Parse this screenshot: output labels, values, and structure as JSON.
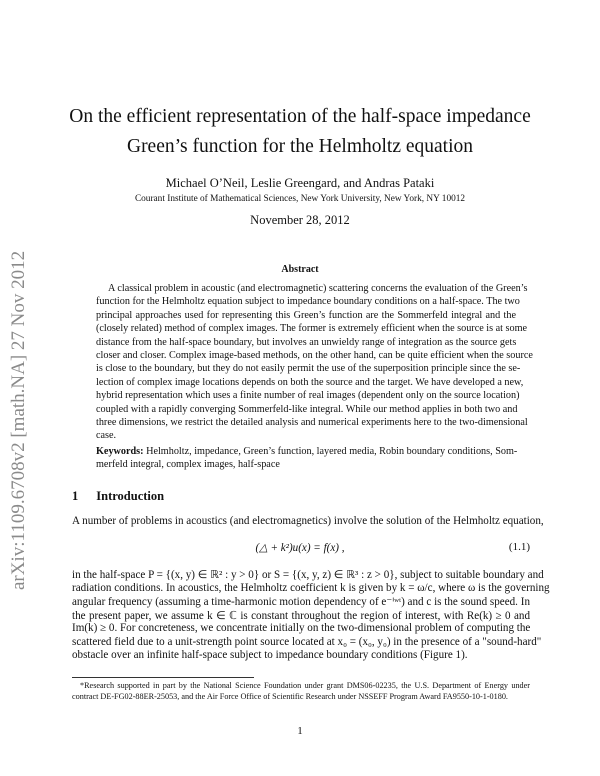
{
  "arxiv_stamp": "arXiv:1109.6708v2  [math.NA]  27 Nov 2012",
  "title_lines": [
    "On the efficient representation of the half-space impedance",
    "Green’s function for the Helmholtz equation"
  ],
  "authors": "Michael O’Neil, Leslie Greengard, and Andras Pataki",
  "affiliation": "Courant Institute of Mathematical Sciences, New York University, New York, NY 10012",
  "date": "November 28, 2012",
  "abstract_heading": "Abstract",
  "abstract_lines": [
    "A classical problem in acoustic (and electromagnetic) scattering concerns the evaluation of the Green’s",
    "function for the Helmholtz equation subject to impedance boundary conditions on a half-space. The two",
    "principal approaches used for representing this Green’s function are the Sommerfeld integral and the",
    "(closely related) method of complex images. The former is extremely efficient when the source is at some",
    "distance from the half-space boundary, but involves an unwieldy range of integration as the source gets",
    "closer and closer. Complex image-based methods, on the other hand, can be quite efficient when the source",
    "is close to the boundary, but they do not easily permit the use of the superposition principle since the se-",
    "lection of complex image locations depends on both the source and the target. We have developed a new,",
    "hybrid representation which uses a finite number of real images (dependent only on the source location)",
    "coupled with a rapidly converging Sommerfeld-like integral. While our method applies in both two and",
    "three dimensions, we restrict the detailed analysis and numerical experiments here to the two-dimensional",
    "case."
  ],
  "keywords_label": "Keywords:",
  "keywords_lines": [
    "Helmholtz, impedance, Green’s function, layered media, Robin boundary conditions, Som-",
    "merfeld integral, complex images, half-space"
  ],
  "section_number": "1",
  "section_title": "Introduction",
  "intro_line": "A number of problems in acoustics (and electromagnetics) involve the solution of the Helmholtz equation,",
  "equation": "(△ + k²)u(x) = f(x) ,",
  "equation_number": "(1.1)",
  "body_lines": [
    "in the half-space P = {(x, y) ∈ ℝ² : y > 0} or S = {(x, y, z) ∈ ℝ³ : z > 0}, subject to suitable boundary and",
    "radiation conditions. In acoustics, the Helmholtz coefficient k is given by k = ω/c, where ω is the governing",
    "angular frequency (assuming a time-harmonic motion dependency of e⁻ⁱʷᵗ) and c is the sound speed. In",
    "the present paper, we assume k ∈ ℂ is constant throughout the region of interest, with Re(k) ≥ 0 and",
    "Im(k) ≥ 0. For concreteness, we concentrate initially on the two-dimensional problem of computing the",
    "scattered field due to a unit-strength point source located at x₀ = (x₀, y₀) in the presence of a \"sound-hard\"",
    "obstacle over an infinite half-space subject to impedance boundary conditions (Figure 1)."
  ],
  "footnote_lines": [
    "*Research supported in part by the National Science Foundation under grant DMS06-02235, the U.S. Department of Energy under",
    "contract DE-FG02-88ER-25053, and the Air Force Office of Scientific Research under NSSEFF Program Award FA9550-10-1-0180."
  ],
  "page_number": "1"
}
